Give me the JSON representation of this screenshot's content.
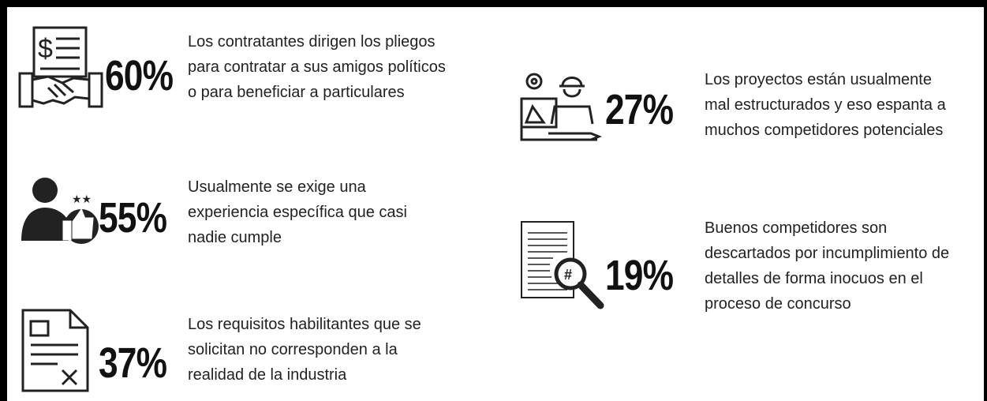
{
  "items": [
    {
      "percent": "60%",
      "lines": [
        "Los contratantes dirigen los pliegos",
        "para contratar a sus amigos políticos",
        "o para beneficiar a particulares"
      ]
    },
    {
      "percent": "55%",
      "lines": [
        "Usualmente se exige una",
        "experiencia específica que casi",
        "nadie cumple"
      ]
    },
    {
      "percent": "37%",
      "lines": [
        "Los requisitos habilitantes que se",
        "solicitan no corresponden a la",
        "realidad de la industria"
      ]
    },
    {
      "percent": "27%",
      "lines": [
        "Los proyectos están usualmente",
        "mal estructurados y eso espanta a",
        "muchos competidores potenciales"
      ]
    },
    {
      "percent": "19%",
      "lines": [
        "Buenos competidores son",
        "descartados por incumplimiento de",
        "detalles de forma inocuos en el",
        "proceso de concurso"
      ]
    }
  ]
}
